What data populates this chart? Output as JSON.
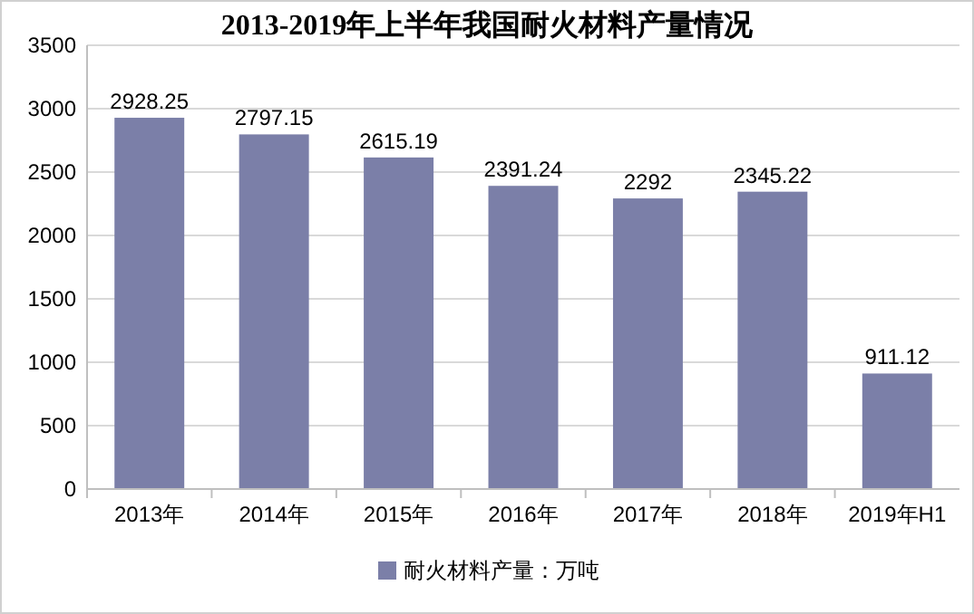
{
  "chart_data": {
    "type": "bar",
    "title": "2013-2019年上半年我国耐火材料产量情况",
    "categories": [
      "2013年",
      "2014年",
      "2015年",
      "2016年",
      "2017年",
      "2018年",
      "2019年H1"
    ],
    "series": [
      {
        "name": "耐火材料产量：万吨",
        "color": "#7b7fa8",
        "values": [
          2928.25,
          2797.15,
          2615.19,
          2391.24,
          2292,
          2345.22,
          911.12
        ]
      }
    ],
    "ylim": [
      0,
      3500
    ],
    "yticks": [
      0,
      500,
      1000,
      1500,
      2000,
      2500,
      3000,
      3500
    ],
    "grid": "y",
    "data_labels": true,
    "legend": "bottom"
  }
}
